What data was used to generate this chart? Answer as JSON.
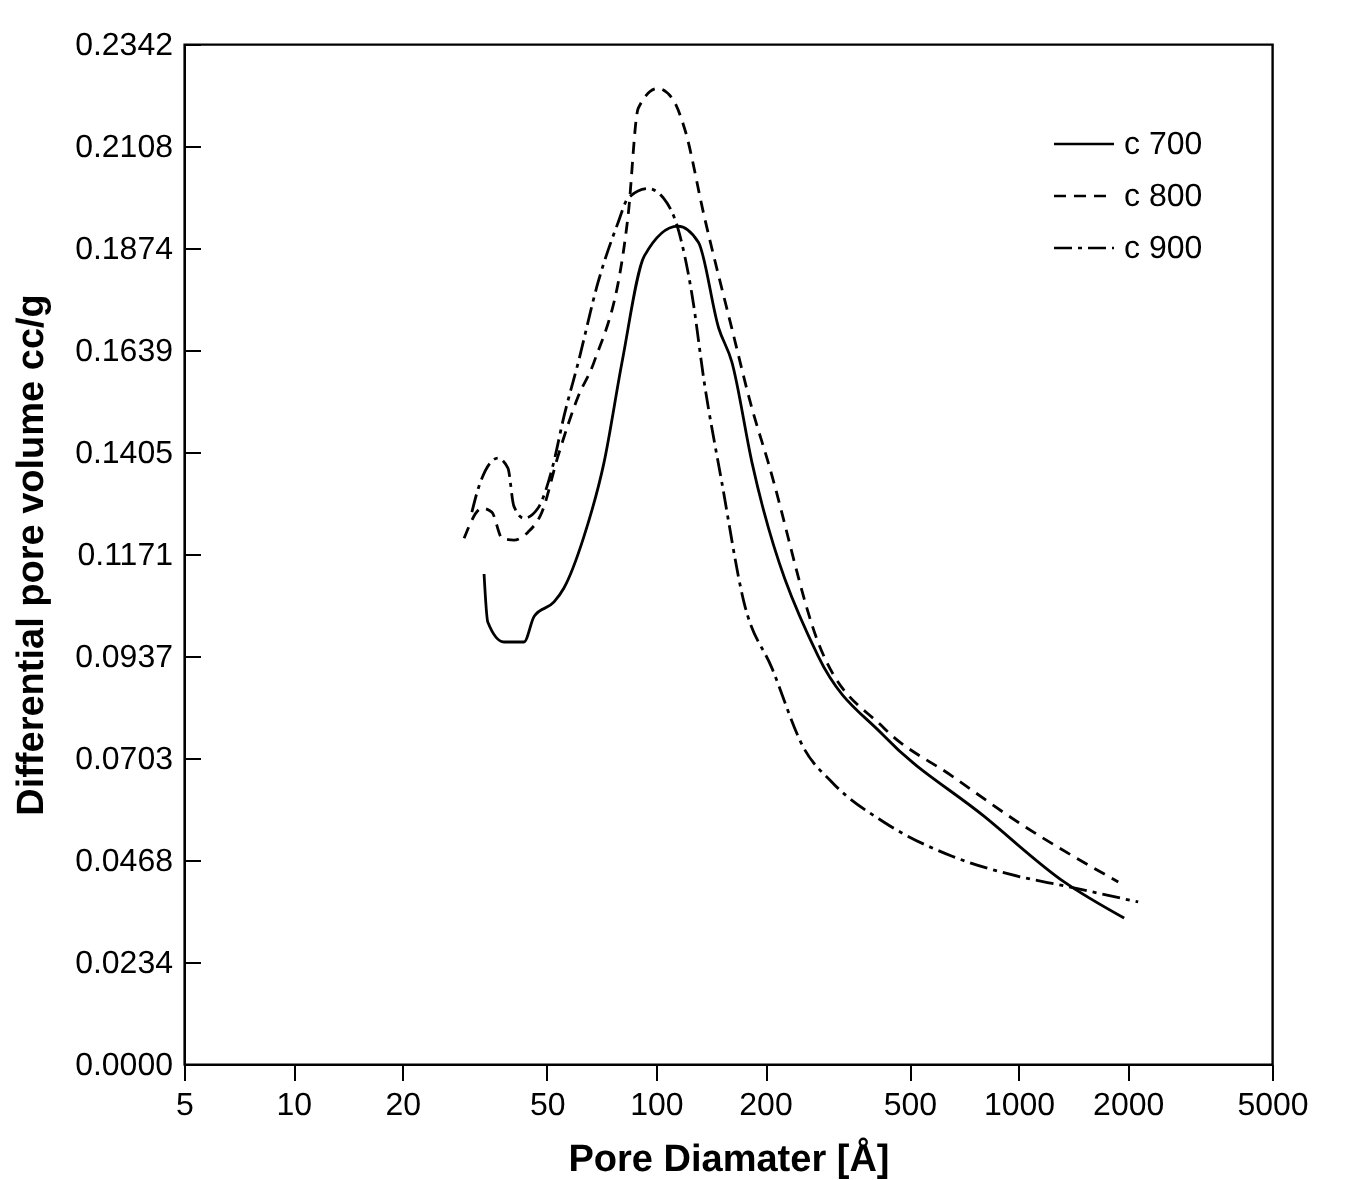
{
  "chart_data": {
    "type": "line",
    "xlabel": "Pore Diamater [Å]",
    "ylabel": "Differential pore volume cc/g",
    "log": "x",
    "grid": false,
    "legend": "top right",
    "marker": "none",
    "xlim": [
      5,
      5000
    ],
    "xticks": [
      5,
      10,
      20,
      50,
      100,
      200,
      500,
      1000,
      2000,
      5000
    ],
    "ylim": [
      0,
      0.2342
    ],
    "yticks": [
      {
        "value": 0,
        "label": "0.0000"
      },
      0.0234,
      0.0468,
      0.0703,
      0.0937,
      0.1171,
      0.1405,
      0.1639,
      0.1874,
      0.2108,
      0.2342
    ],
    "series": [
      {
        "name": "c 700",
        "color": "#000000",
        "line_style": "solid",
        "x": [
          33.6,
          34.4,
          38.1,
          43.3,
          46.2,
          52.4,
          55.8,
          63.4,
          72,
          80.7,
          92.9,
          115,
          131,
          149,
          162,
          184,
          280,
          426,
          803,
          1336,
          1955
        ],
        "values": [
          0.1125,
          0.1015,
          0.0969,
          0.0969,
          0.1028,
          0.1061,
          0.1093,
          0.1212,
          0.1382,
          0.1612,
          0.1855,
          0.1924,
          0.1887,
          0.169,
          0.1612,
          0.1382,
          0.0937,
          0.0753,
          0.0569,
          0.0418,
          0.0335
        ]
      },
      {
        "name": "c 800",
        "color": "#000000",
        "line_style": "dashed",
        "x": [
          29.6,
          33.2,
          35.3,
          37.7,
          40.6,
          44.4,
          48.5,
          53.7,
          61.1,
          67.5,
          83.8,
          89.4,
          101,
          111,
          120,
          136,
          162,
          184,
          204,
          280,
          426,
          656,
          998,
          1884
        ],
        "values": [
          0.1207,
          0.1276,
          0.1267,
          0.1207,
          0.1203,
          0.1221,
          0.1267,
          0.1395,
          0.1533,
          0.1611,
          0.1946,
          0.2194,
          0.224,
          0.2217,
          0.2148,
          0.1946,
          0.1689,
          0.1506,
          0.1382,
          0.0969,
          0.0771,
          0.0661,
          0.0555,
          0.0418
        ]
      },
      {
        "name": "c 900",
        "color": "#000000",
        "line_style": "dashdot",
        "x": [
          31.1,
          32.4,
          36.7,
          39.1,
          40.6,
          43.3,
          47.3,
          51.8,
          55.8,
          61.1,
          69.3,
          78.7,
          83.8,
          95.3,
          105,
          115,
          126,
          136,
          152,
          175,
          209,
          256,
          306,
          426,
          656,
          998,
          1336,
          2138
        ],
        "values": [
          0.1267,
          0.1322,
          0.1391,
          0.1368,
          0.1281,
          0.1253,
          0.1276,
          0.1368,
          0.1487,
          0.1611,
          0.1795,
          0.1932,
          0.1988,
          0.201,
          0.1988,
          0.1919,
          0.1763,
          0.1565,
          0.1336,
          0.106,
          0.0909,
          0.0725,
          0.0647,
          0.0555,
          0.0477,
          0.0431,
          0.0409,
          0.0372
        ]
      }
    ]
  }
}
